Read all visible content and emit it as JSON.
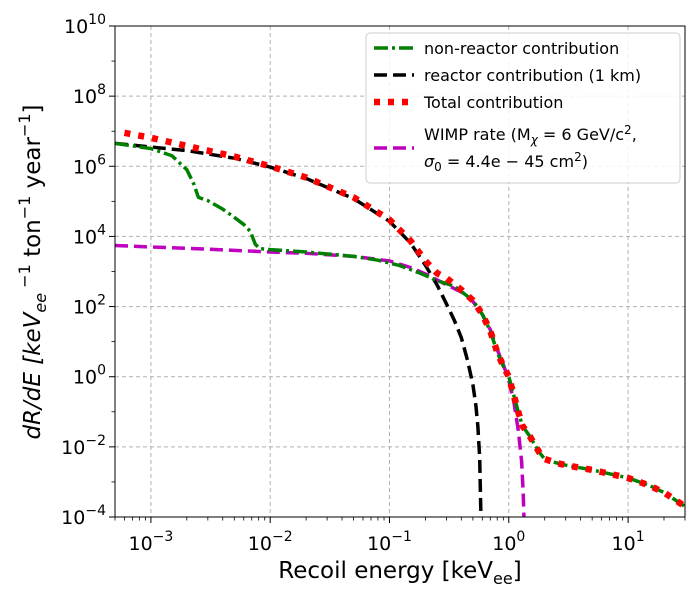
{
  "chart_data": {
    "type": "line",
    "title": "",
    "xscale": "log",
    "yscale": "log",
    "xlim": [
      0.0005,
      30
    ],
    "ylim": [
      0.0001,
      10000000000
    ],
    "grid": true,
    "legend_position": "top-right",
    "xlabel": {
      "main": "Recoil energy [keV",
      "sub": "ee",
      "end": "]"
    },
    "ylabel": {
      "a": "dR/dE [keV",
      "sub": "ee",
      "b": " −1",
      "c": " ton",
      "d": "−1",
      "e": "  year",
      "f": "−1",
      "g": "]"
    },
    "x_ticks": [
      {
        "base": "10",
        "exp": "−3",
        "value": 0.001
      },
      {
        "base": "10",
        "exp": "−2",
        "value": 0.01
      },
      {
        "base": "10",
        "exp": "−1",
        "value": 0.1
      },
      {
        "base": "10",
        "exp": "0",
        "value": 1
      },
      {
        "base": "10",
        "exp": "1",
        "value": 10
      }
    ],
    "y_ticks": [
      {
        "base": "10",
        "exp": "−4",
        "value": 0.0001
      },
      {
        "base": "10",
        "exp": "−2",
        "value": 0.01
      },
      {
        "base": "10",
        "exp": "0",
        "value": 1
      },
      {
        "base": "10",
        "exp": "2",
        "value": 100
      },
      {
        "base": "10",
        "exp": "4",
        "value": 10000
      },
      {
        "base": "10",
        "exp": "6",
        "value": 1000000
      },
      {
        "base": "10",
        "exp": "8",
        "value": 100000000
      },
      {
        "base": "10",
        "exp": "10",
        "value": 10000000000
      }
    ],
    "series": [
      {
        "name": "non-reactor contribution",
        "color": "#008000",
        "style": "dashdot",
        "points": [
          [
            0.0005,
            4500000.0
          ],
          [
            0.001,
            3200000.0
          ],
          [
            0.0015,
            2000000.0
          ],
          [
            0.002,
            800000.0
          ],
          [
            0.0023,
            300000.0
          ],
          [
            0.0025,
            130000.0
          ],
          [
            0.003,
            105000.0
          ],
          [
            0.004,
            60000.0
          ],
          [
            0.005,
            35000.0
          ],
          [
            0.006,
            22000.0
          ],
          [
            0.0068,
            14000.0
          ],
          [
            0.0075,
            6000
          ],
          [
            0.0082,
            4500
          ],
          [
            0.01,
            4200
          ],
          [
            0.02,
            3600
          ],
          [
            0.05,
            2700
          ],
          [
            0.08,
            2100
          ],
          [
            0.12,
            1500
          ],
          [
            0.18,
            900
          ],
          [
            0.25,
            550
          ],
          [
            0.35,
            380
          ],
          [
            0.5,
            150
          ],
          [
            0.6,
            60
          ],
          [
            0.7,
            20
          ],
          [
            0.8,
            5
          ],
          [
            0.9,
            2
          ],
          [
            1.0,
            1.0
          ],
          [
            1.1,
            0.3
          ],
          [
            1.2,
            0.1
          ],
          [
            1.3,
            0.04
          ],
          [
            1.5,
            0.02
          ],
          [
            1.8,
            0.007
          ],
          [
            2.0,
            0.0045
          ],
          [
            2.5,
            0.0035
          ],
          [
            3.0,
            0.003
          ],
          [
            5.0,
            0.0022
          ],
          [
            10,
            0.0013
          ],
          [
            15,
            0.0008
          ],
          [
            20,
            0.0005
          ],
          [
            30,
            0.0002
          ]
        ]
      },
      {
        "name": "reactor contribution (1 km)",
        "color": "#000000",
        "style": "dashed",
        "points": [
          [
            0.0005,
            4500000.0
          ],
          [
            0.002,
            2800000.0
          ],
          [
            0.005,
            1700000.0
          ],
          [
            0.01,
            950000.0
          ],
          [
            0.02,
            450000.0
          ],
          [
            0.05,
            120000.0
          ],
          [
            0.1,
            27000.0
          ],
          [
            0.15,
            6500
          ],
          [
            0.2,
            1500
          ],
          [
            0.25,
            420
          ],
          [
            0.3,
            120
          ],
          [
            0.35,
            40
          ],
          [
            0.4,
            13
          ],
          [
            0.45,
            3
          ],
          [
            0.5,
            0.6
          ],
          [
            0.53,
            0.15
          ],
          [
            0.55,
            0.04
          ],
          [
            0.57,
            0.005
          ],
          [
            0.58,
            0.0003
          ],
          [
            0.585,
            0.0001
          ]
        ]
      },
      {
        "name": "Total contribution",
        "color": "#ff0000",
        "style": "dotted",
        "points": [
          [
            0.0006,
            9000000.0
          ],
          [
            0.001,
            6500000.0
          ],
          [
            0.002,
            3800000.0
          ],
          [
            0.005,
            1900000.0
          ],
          [
            0.01,
            1000000.0
          ],
          [
            0.02,
            480000.0
          ],
          [
            0.05,
            130000.0
          ],
          [
            0.1,
            30000.0
          ],
          [
            0.15,
            7500
          ],
          [
            0.2,
            2000
          ],
          [
            0.25,
            900
          ],
          [
            0.3,
            650
          ],
          [
            0.4,
            300
          ],
          [
            0.5,
            150
          ],
          [
            0.6,
            60
          ],
          [
            0.7,
            20
          ],
          [
            0.8,
            5
          ],
          [
            0.9,
            2
          ],
          [
            1.0,
            1.0
          ],
          [
            1.1,
            0.3
          ],
          [
            1.2,
            0.1
          ],
          [
            1.3,
            0.04
          ],
          [
            1.5,
            0.02
          ],
          [
            1.8,
            0.007
          ],
          [
            2.0,
            0.0045
          ],
          [
            2.5,
            0.0035
          ],
          [
            3.0,
            0.003
          ],
          [
            5.0,
            0.0022
          ],
          [
            10,
            0.0013
          ],
          [
            15,
            0.0008
          ],
          [
            20,
            0.0005
          ],
          [
            30,
            0.0002
          ]
        ]
      },
      {
        "name": "WIMP rate",
        "color": "#bf00bf",
        "style": "dashed",
        "points": [
          [
            0.0005,
            5500
          ],
          [
            0.001,
            5000
          ],
          [
            0.002,
            4600
          ],
          [
            0.005,
            4000
          ],
          [
            0.01,
            3600
          ],
          [
            0.02,
            3300
          ],
          [
            0.05,
            2700
          ],
          [
            0.1,
            2000
          ],
          [
            0.15,
            1300
          ],
          [
            0.2,
            850
          ],
          [
            0.25,
            580
          ],
          [
            0.3,
            420
          ],
          [
            0.4,
            260
          ],
          [
            0.5,
            140
          ],
          [
            0.6,
            60
          ],
          [
            0.7,
            22
          ],
          [
            0.8,
            6
          ],
          [
            0.9,
            2.2
          ],
          [
            1.0,
            0.8
          ],
          [
            1.1,
            0.2
          ],
          [
            1.2,
            0.03
          ],
          [
            1.28,
            0.004
          ],
          [
            1.32,
            0.0005
          ],
          [
            1.34,
            0.0001
          ]
        ]
      }
    ],
    "legend": [
      {
        "series": 0,
        "label": "non-reactor contribution"
      },
      {
        "series": 1,
        "label": "reactor contribution (1 km)"
      },
      {
        "series": 2,
        "label": "Total contribution"
      },
      {
        "series": 3,
        "label_line1": "WIMP rate (M",
        "label_line1_sub": "χ",
        "label_line1_end": " = 6 GeV/c",
        "label_line1_sup": "2",
        "label_line1_tail": ",",
        "label_line2": "σ",
        "label_line2_sub": "0",
        "label_line2_mid": " = 4.4e − 45 cm",
        "label_line2_sup": "2",
        "label_line2_end": ")"
      }
    ]
  }
}
